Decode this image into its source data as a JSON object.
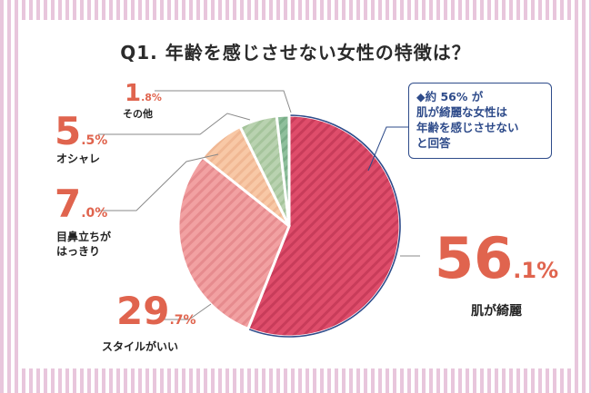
{
  "title": "Q1. 年齢を感じさせない女性の特徴は？",
  "callout": {
    "line1": "◆約 56% が",
    "line2": "肌が綺麗な女性は",
    "line3": "年齢を感じさせない",
    "line4": "と回答"
  },
  "labels": {
    "hada": {
      "int": "56",
      "dec": ".1%",
      "name": "肌が綺麗"
    },
    "style": {
      "int": "29",
      "dec": ".7%",
      "name": "スタイルがいい"
    },
    "medachi": {
      "int": "7",
      "dec": ".0%",
      "name1": "目鼻立ちが",
      "name2": "はっきり"
    },
    "oshare": {
      "int": "5",
      "dec": ".5%",
      "name": "オシャレ"
    },
    "sonota": {
      "int": "1",
      "dec": ".8%",
      "name": "その他"
    }
  },
  "chart_data": {
    "type": "pie",
    "title": "Q1. 年齢を感じさせない女性の特徴は？",
    "categories": [
      "肌が綺麗",
      "スタイルがいい",
      "目鼻立ちがはっきり",
      "オシャレ",
      "その他"
    ],
    "values": [
      56.1,
      29.7,
      7.0,
      5.5,
      1.8
    ],
    "colors": [
      "#df4d6b",
      "#f2a1a2",
      "#f8c8a6",
      "#b9d2b0",
      "#8fbf9c"
    ],
    "stripe_colors": [
      "#c83c5a",
      "#e68b8e",
      "#f0b793",
      "#a5c49b",
      "#78ad87"
    ],
    "highlight_color": "#2e4b8a",
    "annotation": "◆約 56% が 肌が綺麗な女性は 年齢を感じさせない と回答"
  }
}
